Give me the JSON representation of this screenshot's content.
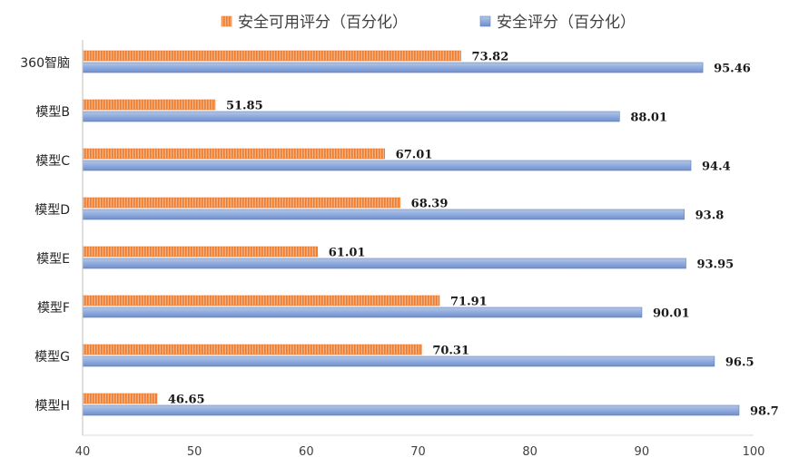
{
  "chart_data": {
    "type": "bar",
    "orientation": "horizontal",
    "categories": [
      "360智脑",
      "模型B",
      "模型C",
      "模型D",
      "模型E",
      "模型F",
      "模型G",
      "模型H"
    ],
    "series": [
      {
        "name": "安全可用评分（百分化）",
        "color": "#ED7D31",
        "pattern": "vertical-stripes",
        "values": [
          73.82,
          51.85,
          67.01,
          68.39,
          61.01,
          71.91,
          70.31,
          46.65
        ]
      },
      {
        "name": "安全评分（百分化）",
        "color": "#8EA9DB",
        "pattern": "gradient",
        "values": [
          95.46,
          88.01,
          94.4,
          93.8,
          93.95,
          90.01,
          96.5,
          98.7
        ]
      }
    ],
    "xlim": [
      40,
      100
    ],
    "xticks": [
      "40",
      "50",
      "60",
      "70",
      "80",
      "90",
      "100"
    ],
    "legend_position": "top",
    "grid": false,
    "data_labels": true
  }
}
